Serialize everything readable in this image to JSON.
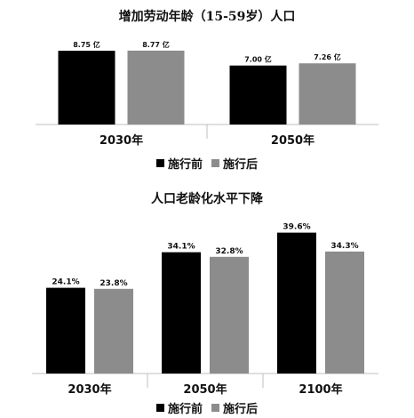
{
  "colors": {
    "before": "#000000",
    "after": "#8c8c8c",
    "axis": "#bfbfbf",
    "text": "#111111"
  },
  "chart_data": [
    {
      "type": "bar",
      "title": "增加劳动年龄（15-59岁）人口",
      "categories": [
        "2030年",
        "2050年"
      ],
      "series": [
        {
          "name": "施行前",
          "values": [
            8.75,
            7.0
          ],
          "labels": [
            "8.75 亿",
            "7.00 亿"
          ]
        },
        {
          "name": "施行后",
          "values": [
            8.77,
            7.26
          ],
          "labels": [
            "8.77 亿",
            "7.26 亿"
          ]
        }
      ],
      "unit": "亿",
      "ylim": [
        0,
        9.5
      ],
      "grid": false,
      "legend": "bottom"
    },
    {
      "type": "bar",
      "title": "人口老龄化水平下降",
      "categories": [
        "2030年",
        "2050年",
        "2100年"
      ],
      "series": [
        {
          "name": "施行前",
          "values": [
            24.1,
            34.1,
            39.6
          ],
          "labels": [
            "24.1%",
            "34.1%",
            "39.6%"
          ]
        },
        {
          "name": "施行后",
          "values": [
            23.8,
            32.8,
            34.3
          ],
          "labels": [
            "23.8%",
            "32.8%",
            "34.3%"
          ]
        }
      ],
      "unit": "%",
      "ylim": [
        0,
        42.5
      ],
      "grid": false,
      "legend": "bottom"
    }
  ]
}
